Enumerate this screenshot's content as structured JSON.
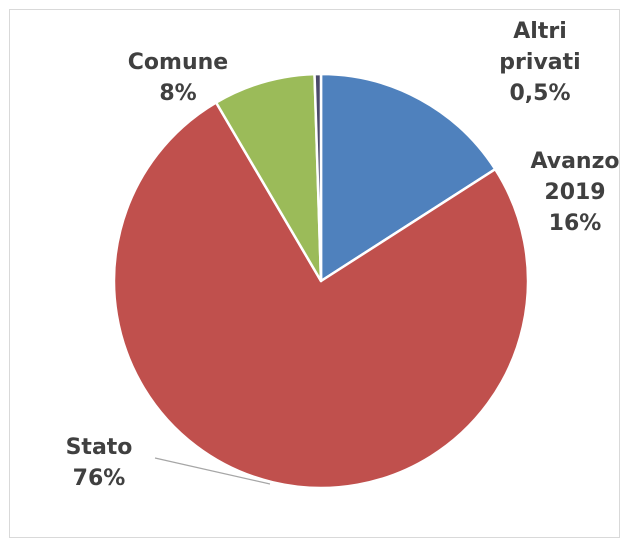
{
  "chart_data": {
    "type": "pie",
    "title": "",
    "start_angle_deg": 0,
    "direction": "clockwise",
    "slices": [
      {
        "name_lines": [
          "Avanzo",
          "2019"
        ],
        "label": "Avanzo 2019",
        "value": 16,
        "value_label": "16%",
        "color": "#4f81bd"
      },
      {
        "name_lines": [
          "Stato"
        ],
        "label": "Stato",
        "value": 76,
        "value_label": "76%",
        "color": "#c0504d"
      },
      {
        "name_lines": [
          "Comune"
        ],
        "label": "Comune",
        "value": 8,
        "value_label": "8%",
        "color": "#9bbb59"
      },
      {
        "name_lines": [
          "Altri",
          "privati"
        ],
        "label": "Altri privati",
        "value": 0.5,
        "value_label": "0,5%",
        "color": "#4a4a6a"
      }
    ],
    "legend": "none",
    "data_labels": "outside"
  }
}
